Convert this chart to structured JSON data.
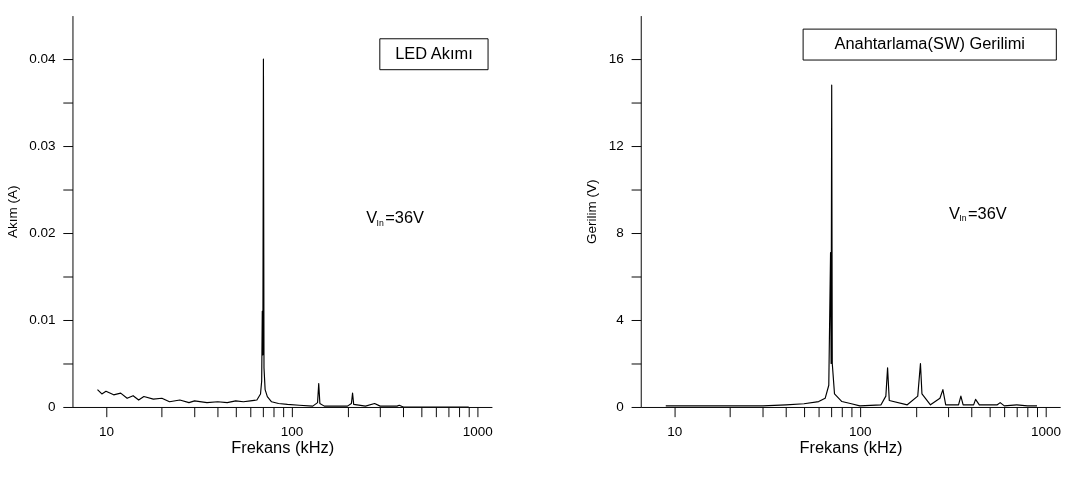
{
  "chart_data": [
    {
      "type": "line",
      "xlabel": "Frekans (kHz)",
      "ylabel": "Akım (A)",
      "log": "x",
      "grid": false,
      "legend": false,
      "marker": "none",
      "line_style": "solid",
      "xlim": [
        6.6,
        1200
      ],
      "xticks": [
        10,
        {
          "value": 20,
          "label": null
        },
        {
          "value": 30,
          "label": null
        },
        {
          "value": 40,
          "label": null
        },
        {
          "value": 50,
          "label": null
        },
        {
          "value": 60,
          "label": null
        },
        {
          "value": 70,
          "label": null
        },
        {
          "value": 80,
          "label": null
        },
        {
          "value": 90,
          "label": null
        },
        100,
        {
          "value": 200,
          "label": null
        },
        {
          "value": 300,
          "label": null
        },
        {
          "value": 400,
          "label": null
        },
        {
          "value": 500,
          "label": null
        },
        {
          "value": 600,
          "label": null
        },
        {
          "value": 700,
          "label": null
        },
        {
          "value": 800,
          "label": null
        },
        {
          "value": 900,
          "label": null
        },
        1000
      ],
      "ylim": [
        0,
        0.045
      ],
      "yticks": [
        0,
        {
          "value": 0.005,
          "label": null
        },
        0.01,
        {
          "value": 0.015,
          "label": null
        },
        0.02,
        {
          "value": 0.025,
          "label": null
        },
        0.03,
        {
          "value": 0.035,
          "label": null
        },
        0.04
      ],
      "annotations": [
        "LED Akımı",
        "V$_{In}$=36V"
      ],
      "series": [
        {
          "color": "#000000",
          "x": [
            9,
            9.5,
            10,
            11,
            12,
            13,
            14,
            15,
            16,
            18,
            20,
            22,
            25,
            28,
            30,
            35,
            40,
            45,
            50,
            55,
            60,
            65,
            68,
            69,
            69.5,
            70,
            70.5,
            71,
            72,
            74,
            78,
            85,
            95,
            110,
            130,
            138,
            140,
            142,
            150,
            200,
            210,
            213,
            216,
            250,
            280,
            300,
            370,
            380,
            400,
            900
          ],
          "values": [
            0.002,
            0.0015,
            0.0018,
            0.0014,
            0.0016,
            0.001,
            0.0013,
            0.0008,
            0.0012,
            0.0009,
            0.001,
            0.0006,
            0.0008,
            0.0005,
            0.0007,
            0.0005,
            0.0006,
            0.0005,
            0.0007,
            0.0006,
            0.0007,
            0.0008,
            0.0015,
            0.003,
            0.011,
            0.006,
            0.04,
            0.0045,
            0.002,
            0.0012,
            0.0006,
            0.0004,
            0.0003,
            0.0002,
            0.0001,
            0.0005,
            0.0027,
            0.0004,
            0.0001,
            0.0001,
            0.0004,
            0.0016,
            0.0003,
            0.0001,
            0.0004,
            0.0001,
            0.0001,
            0.0002,
            0,
            0
          ]
        }
      ]
    },
    {
      "type": "line",
      "xlabel": "Frekans (kHz)",
      "ylabel": "Gerilim (V)",
      "log": "x",
      "grid": false,
      "legend": false,
      "marker": "none",
      "line_style": "solid",
      "xlim": [
        6.6,
        1200
      ],
      "xticks": [
        10,
        {
          "value": 20,
          "label": null
        },
        {
          "value": 30,
          "label": null
        },
        {
          "value": 40,
          "label": null
        },
        {
          "value": 50,
          "label": null
        },
        {
          "value": 60,
          "label": null
        },
        {
          "value": 70,
          "label": null
        },
        {
          "value": 80,
          "label": null
        },
        {
          "value": 90,
          "label": null
        },
        100,
        {
          "value": 200,
          "label": null
        },
        {
          "value": 300,
          "label": null
        },
        {
          "value": 400,
          "label": null
        },
        {
          "value": 500,
          "label": null
        },
        {
          "value": 600,
          "label": null
        },
        {
          "value": 700,
          "label": null
        },
        {
          "value": 800,
          "label": null
        },
        {
          "value": 900,
          "label": null
        },
        1000
      ],
      "ylim": [
        0,
        18
      ],
      "yticks": [
        0,
        {
          "value": 2,
          "label": null
        },
        4,
        {
          "value": 6,
          "label": null
        },
        8,
        {
          "value": 10,
          "label": null
        },
        12,
        {
          "value": 14,
          "label": null
        },
        16
      ],
      "annotations": [
        "Anahtarlama(SW) Gerilimi",
        "V$_{In}$=36V"
      ],
      "series": [
        {
          "color": "#000000",
          "x": [
            9,
            20,
            30,
            40,
            50,
            60,
            65,
            68,
            69.5,
            70,
            70.5,
            71,
            73,
            80,
            90,
            100,
            130,
            138,
            141,
            144,
            180,
            205,
            212,
            216,
            240,
            270,
            280,
            290,
            340,
            350,
            360,
            410,
            420,
            440,
            550,
            570,
            600,
            700,
            800,
            900
          ],
          "values": [
            0.05,
            0.05,
            0.05,
            0.1,
            0.15,
            0.25,
            0.4,
            1.0,
            7.1,
            2.0,
            14.8,
            2.0,
            0.6,
            0.25,
            0.15,
            0.05,
            0.1,
            0.5,
            1.8,
            0.3,
            0.1,
            0.5,
            2.0,
            0.6,
            0.1,
            0.4,
            0.8,
            0.1,
            0.1,
            0.5,
            0.1,
            0.1,
            0.35,
            0.1,
            0.1,
            0.2,
            0.05,
            0.1,
            0.05,
            0.05
          ]
        }
      ]
    }
  ]
}
